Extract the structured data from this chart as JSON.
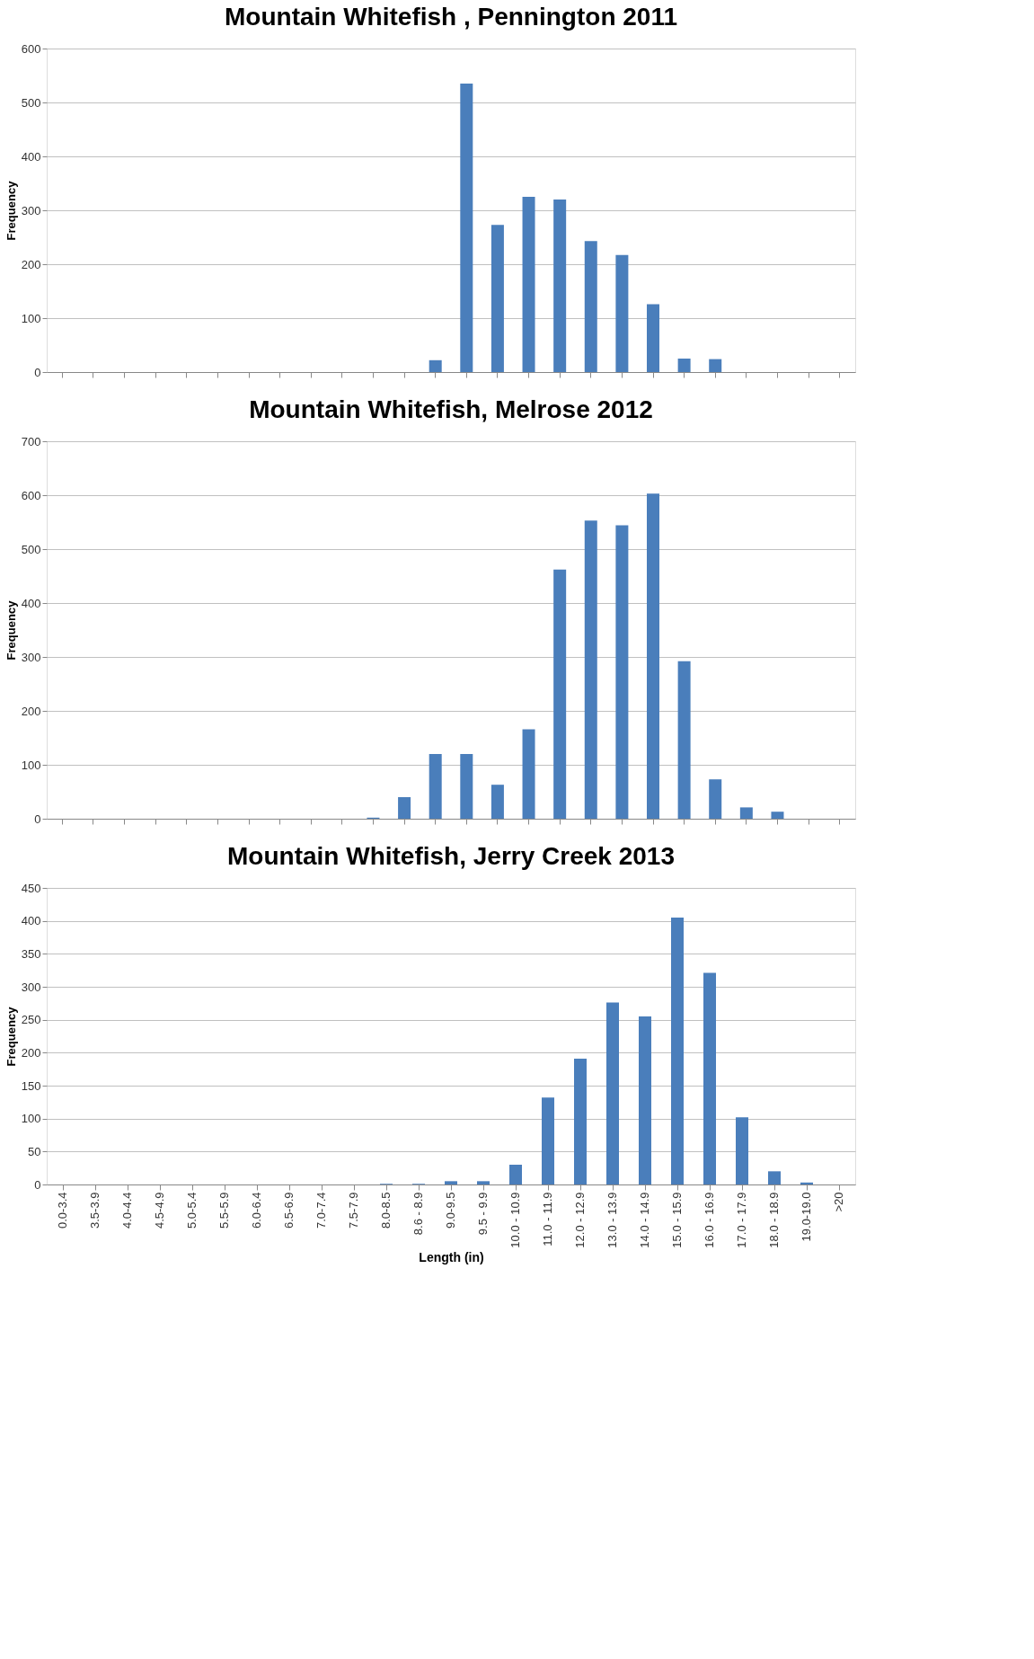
{
  "chart_data": [
    {
      "type": "bar",
      "title": "Mountain Whitefish , Pennington 2011",
      "ylabel": "Frequency",
      "categories": [
        null,
        null,
        null,
        null,
        null,
        null,
        null,
        null,
        null,
        null,
        null,
        null,
        null,
        null,
        null,
        null,
        null,
        null,
        null,
        null,
        null,
        null,
        null,
        null,
        null,
        null
      ],
      "series": [
        {
          "color": "#4a7ebb",
          "values": [
            0,
            0,
            0,
            0,
            0,
            0,
            0,
            0,
            0,
            0,
            0,
            0,
            22,
            535,
            273,
            325,
            320,
            243,
            217,
            126,
            25,
            24,
            0,
            0,
            0,
            0
          ]
        }
      ],
      "ylim": [
        0,
        600
      ],
      "yticks": [
        0,
        100,
        200,
        300,
        400,
        500,
        600
      ],
      "grid": "y",
      "legend": false,
      "tick_labels": "y"
    },
    {
      "type": "bar",
      "title": "Mountain Whitefish, Melrose 2012",
      "ylabel": "Frequency",
      "categories": [
        null,
        null,
        null,
        null,
        null,
        null,
        null,
        null,
        null,
        null,
        null,
        null,
        null,
        null,
        null,
        null,
        null,
        null,
        null,
        null,
        null,
        null,
        null,
        null,
        null,
        null
      ],
      "series": [
        {
          "color": "#4a7ebb",
          "values": [
            0,
            0,
            0,
            0,
            0,
            0,
            0,
            0,
            0,
            0,
            2,
            40,
            120,
            120,
            63,
            166,
            462,
            553,
            544,
            603,
            292,
            73,
            21,
            13,
            0,
            0
          ]
        }
      ],
      "ylim": [
        0,
        700
      ],
      "yticks": [
        0,
        100,
        200,
        300,
        400,
        500,
        600,
        700
      ],
      "grid": "y",
      "legend": false,
      "tick_labels": "y"
    },
    {
      "type": "bar",
      "title": "Mountain Whitefish, Jerry Creek 2013",
      "ylabel": "Frequency",
      "xlabel": "Length (in)",
      "categories": [
        "0.0-3.4",
        "3.5-3.9",
        "4.0-4.4",
        "4.5-4.9",
        "5.0-5.4",
        "5.5-5.9",
        "6.0-6.4",
        "6.5-6.9",
        "7.0-7.4",
        "7.5-7.9",
        "8.0-8.5",
        "8.6 - 8.9",
        "9.0-9.5",
        "9.5 - 9.9",
        "10.0 - 10.9",
        "11.0 - 11.9",
        "12.0 - 12.9",
        "13.0 - 13.9",
        "14.0 - 14.9",
        "15.0 - 15.9",
        "16.0 - 16.9",
        "17.0 - 17.9",
        "18.0 - 18.9",
        "19.0-19.0",
        ">20"
      ],
      "series": [
        {
          "color": "#4a7ebb",
          "values": [
            0,
            0,
            0,
            0,
            0,
            0,
            0,
            0,
            0,
            0,
            1,
            1,
            5,
            5,
            30,
            132,
            191,
            276,
            255,
            405,
            321,
            102,
            20,
            3,
            0
          ]
        }
      ],
      "ylim": [
        0,
        450
      ],
      "yticks": [
        0,
        50,
        100,
        150,
        200,
        250,
        300,
        350,
        400,
        450
      ],
      "grid": "y",
      "legend": false
    }
  ]
}
